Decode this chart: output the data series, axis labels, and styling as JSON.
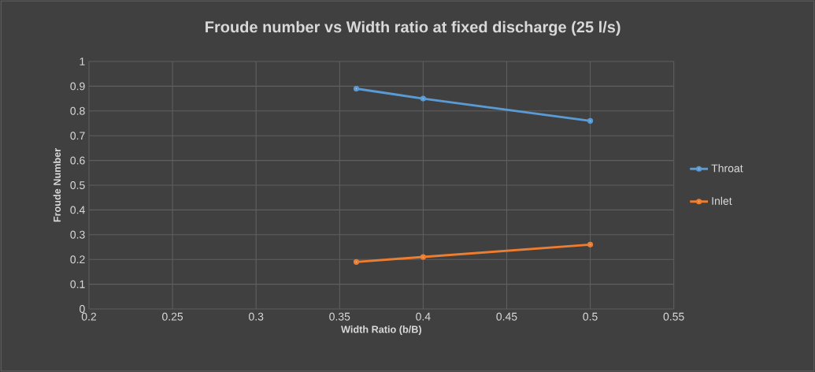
{
  "chart_data": {
    "type": "line",
    "title": "Froude number vs Width ratio at fixed discharge (25 l/s)",
    "xlabel": "Width Ratio (b/B)",
    "ylabel": "Froude Number",
    "x": [
      0.36,
      0.4,
      0.5
    ],
    "series": [
      {
        "name": "Throat",
        "color": "#5b9bd5",
        "values": [
          0.89,
          0.85,
          0.76
        ]
      },
      {
        "name": "Inlet",
        "color": "#ed7d31",
        "values": [
          0.19,
          0.21,
          0.26
        ]
      }
    ],
    "xlim": [
      0.2,
      0.55
    ],
    "xticks": [
      0.2,
      0.25,
      0.3,
      0.35,
      0.4,
      0.45,
      0.5,
      0.55
    ],
    "ylim": [
      0,
      1
    ],
    "yticks": [
      0,
      0.1,
      0.2,
      0.3,
      0.4,
      0.5,
      0.6,
      0.7,
      0.8,
      0.9,
      1
    ],
    "grid": true,
    "legend": "right",
    "marker": "circle",
    "line_style": "solid"
  }
}
